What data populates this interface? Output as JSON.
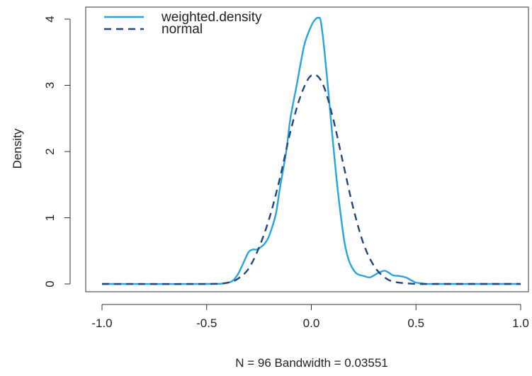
{
  "chart_data": {
    "type": "line",
    "title": "",
    "xlabel": "N = 96   Bandwidth = 0.03551",
    "ylabel": "Density",
    "xlim": [
      -1.0,
      1.0
    ],
    "ylim": [
      0,
      4.1
    ],
    "x_ticks": [
      -1.0,
      -0.5,
      0.0,
      0.5,
      1.0
    ],
    "x_tick_labels": [
      "-1.0",
      "-0.5",
      "0.0",
      "0.5",
      "1.0"
    ],
    "y_ticks": [
      0,
      1,
      2,
      3,
      4
    ],
    "y_tick_labels": [
      "0",
      "1",
      "2",
      "3",
      "4"
    ],
    "grid": false,
    "legend_position": "top-left",
    "series": [
      {
        "name": "weighted.density",
        "style": "solid",
        "color": "#29a3e0",
        "x": [
          -1.0,
          -0.5,
          -0.42,
          -0.38,
          -0.35,
          -0.32,
          -0.3,
          -0.28,
          -0.26,
          -0.24,
          -0.22,
          -0.2,
          -0.17,
          -0.15,
          -0.12,
          -0.1,
          -0.07,
          -0.05,
          -0.03,
          0.0,
          0.02,
          0.035,
          0.045,
          0.06,
          0.08,
          0.1,
          0.12,
          0.14,
          0.16,
          0.18,
          0.2,
          0.22,
          0.25,
          0.28,
          0.31,
          0.33,
          0.35,
          0.37,
          0.39,
          0.42,
          0.45,
          0.48,
          0.5,
          0.53,
          0.55,
          0.6,
          1.0
        ],
        "y": [
          0.0,
          0.0,
          0.01,
          0.04,
          0.15,
          0.35,
          0.48,
          0.52,
          0.52,
          0.56,
          0.62,
          0.74,
          1.05,
          1.45,
          2.0,
          2.5,
          3.0,
          3.35,
          3.65,
          3.9,
          4.0,
          4.02,
          3.97,
          3.6,
          2.95,
          2.25,
          1.6,
          1.05,
          0.6,
          0.35,
          0.22,
          0.15,
          0.12,
          0.1,
          0.15,
          0.18,
          0.2,
          0.17,
          0.13,
          0.12,
          0.1,
          0.05,
          0.02,
          0.01,
          0.0,
          0.0,
          0.0
        ]
      },
      {
        "name": "normal",
        "style": "dashed",
        "color": "#23457a",
        "x": [
          -1.0,
          -0.5,
          -0.4,
          -0.35,
          -0.3,
          -0.25,
          -0.2,
          -0.15,
          -0.1,
          -0.05,
          0.0,
          0.05,
          0.1,
          0.15,
          0.2,
          0.25,
          0.3,
          0.35,
          0.4,
          0.5,
          0.6,
          1.0
        ],
        "y": [
          0.0,
          0.0,
          0.02,
          0.08,
          0.23,
          0.55,
          1.0,
          1.6,
          2.3,
          2.85,
          3.15,
          3.05,
          2.55,
          1.85,
          1.15,
          0.6,
          0.27,
          0.1,
          0.03,
          0.0,
          0.0,
          0.0
        ]
      }
    ]
  }
}
